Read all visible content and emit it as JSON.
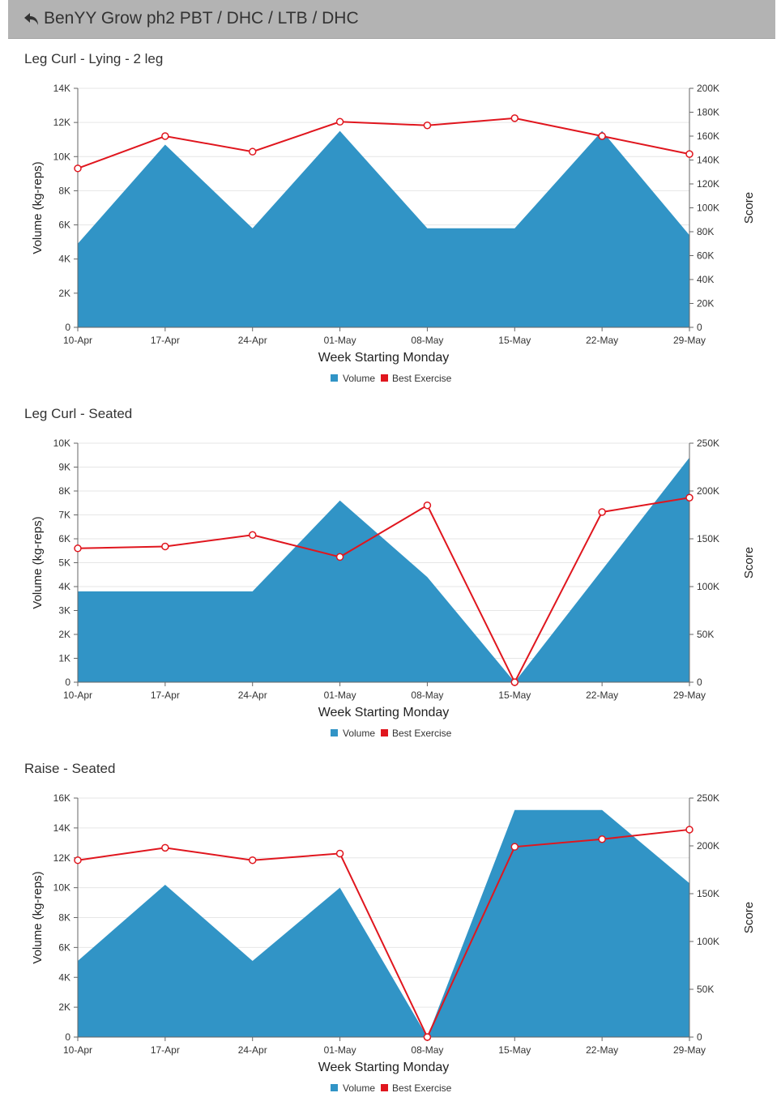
{
  "header": {
    "title": "BenYY Grow ph2 PBT / DHC / LTB / DHC"
  },
  "colors": {
    "volume": "#3194c6",
    "best_exercise": "#e0161e",
    "grid": "#e6e6e6",
    "header_bg": "#b3b3b3"
  },
  "chart_data": [
    {
      "type": "area",
      "title": "Leg Curl - Lying - 2 leg",
      "xlabel": "Week Starting Monday",
      "ylabel": "Volume (kg-reps)",
      "y2label": "Score",
      "categories": [
        "10-Apr",
        "17-Apr",
        "24-Apr",
        "01-May",
        "08-May",
        "15-May",
        "22-May",
        "29-May"
      ],
      "ylim": [
        0,
        14000
      ],
      "yticks": [
        "0",
        "2K",
        "4K",
        "6K",
        "8K",
        "10K",
        "12K",
        "14K"
      ],
      "y2lim": [
        0,
        200000
      ],
      "y2ticks": [
        "0",
        "20K",
        "40K",
        "60K",
        "80K",
        "100K",
        "120K",
        "140K",
        "160K",
        "180K",
        "200K"
      ],
      "legend": [
        "Volume",
        "Best Exercise"
      ],
      "legend_position": "bottom-center",
      "grid": true,
      "series": [
        {
          "name": "Volume",
          "type": "area",
          "axis": "left",
          "values": [
            4900,
            10700,
            5800,
            11500,
            5800,
            5800,
            11500,
            5400
          ]
        },
        {
          "name": "Best Exercise",
          "type": "line",
          "axis": "right",
          "values": [
            133000,
            160000,
            147000,
            172000,
            169000,
            175000,
            160000,
            145000
          ]
        }
      ]
    },
    {
      "type": "area",
      "title": "Leg Curl - Seated",
      "xlabel": "Week Starting Monday",
      "ylabel": "Volume (kg-reps)",
      "y2label": "Score",
      "categories": [
        "10-Apr",
        "17-Apr",
        "24-Apr",
        "01-May",
        "08-May",
        "15-May",
        "22-May",
        "29-May"
      ],
      "ylim": [
        0,
        10000
      ],
      "yticks": [
        "0",
        "1K",
        "2K",
        "3K",
        "4K",
        "5K",
        "6K",
        "7K",
        "8K",
        "9K",
        "10K"
      ],
      "y2lim": [
        0,
        250000
      ],
      "y2ticks": [
        "0",
        "50K",
        "100K",
        "150K",
        "200K",
        "250K"
      ],
      "legend": [
        "Volume",
        "Best Exercise"
      ],
      "legend_position": "bottom-center",
      "grid": true,
      "series": [
        {
          "name": "Volume",
          "type": "area",
          "axis": "left",
          "values": [
            3800,
            3800,
            3800,
            7600,
            4400,
            0,
            4700,
            9400
          ]
        },
        {
          "name": "Best Exercise",
          "type": "line",
          "axis": "right",
          "values": [
            140000,
            142000,
            154000,
            131000,
            185000,
            0,
            178000,
            193000
          ]
        }
      ]
    },
    {
      "type": "area",
      "title": "Raise - Seated",
      "xlabel": "Week Starting Monday",
      "ylabel": "Volume (kg-reps)",
      "y2label": "Score",
      "categories": [
        "10-Apr",
        "17-Apr",
        "24-Apr",
        "01-May",
        "08-May",
        "15-May",
        "22-May",
        "29-May"
      ],
      "ylim": [
        0,
        16000
      ],
      "yticks": [
        "0",
        "2K",
        "4K",
        "6K",
        "8K",
        "10K",
        "12K",
        "14K",
        "16K"
      ],
      "y2lim": [
        0,
        250000
      ],
      "y2ticks": [
        "0",
        "50K",
        "100K",
        "150K",
        "200K",
        "250K"
      ],
      "legend": [
        "Volume",
        "Best Exercise"
      ],
      "legend_position": "bottom-center",
      "grid": true,
      "series": [
        {
          "name": "Volume",
          "type": "area",
          "axis": "left",
          "values": [
            5100,
            10200,
            5100,
            10000,
            0,
            15200,
            15200,
            10300
          ]
        },
        {
          "name": "Best Exercise",
          "type": "line",
          "axis": "right",
          "values": [
            185000,
            198000,
            185000,
            192000,
            0,
            199000,
            207000,
            217000
          ]
        }
      ]
    }
  ]
}
